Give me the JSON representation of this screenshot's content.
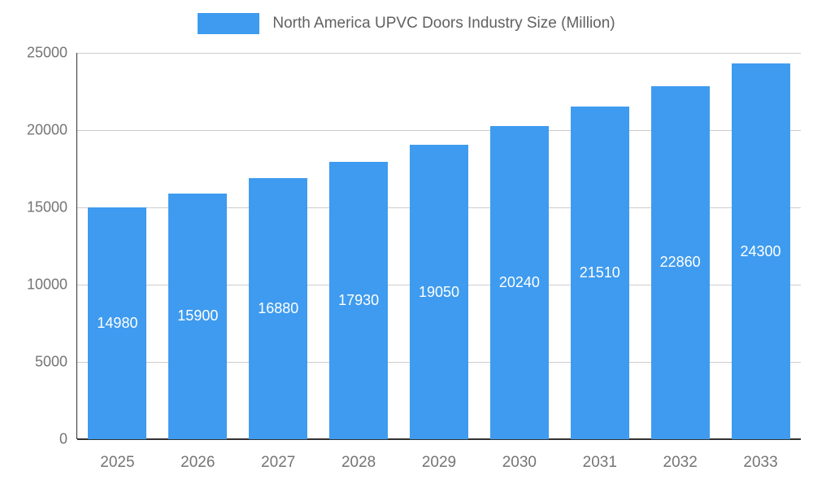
{
  "legend": {
    "title": "North America UPVC Doors Industry Size (Million)"
  },
  "chart_data": {
    "type": "bar",
    "categories": [
      "2025",
      "2026",
      "2027",
      "2028",
      "2029",
      "2030",
      "2031",
      "2032",
      "2033"
    ],
    "values": [
      14980,
      15900,
      16880,
      17930,
      19050,
      20240,
      21510,
      22860,
      24300
    ],
    "title": "North America UPVC Doors Industry Size (Million)",
    "xlabel": "",
    "ylabel": "",
    "ylim": [
      0,
      25000
    ],
    "yticks": [
      0,
      5000,
      10000,
      15000,
      20000,
      25000
    ],
    "grid": true,
    "legend_position": "top",
    "bar_labels": "inside-center-white",
    "colors": {
      "bar": "#3e9bef",
      "value_label": "#ffffff",
      "axis_text": "#757575",
      "legend_text": "#616161",
      "gridline": "#cccccc",
      "baseline": "#333333",
      "background": "#ffffff"
    }
  }
}
